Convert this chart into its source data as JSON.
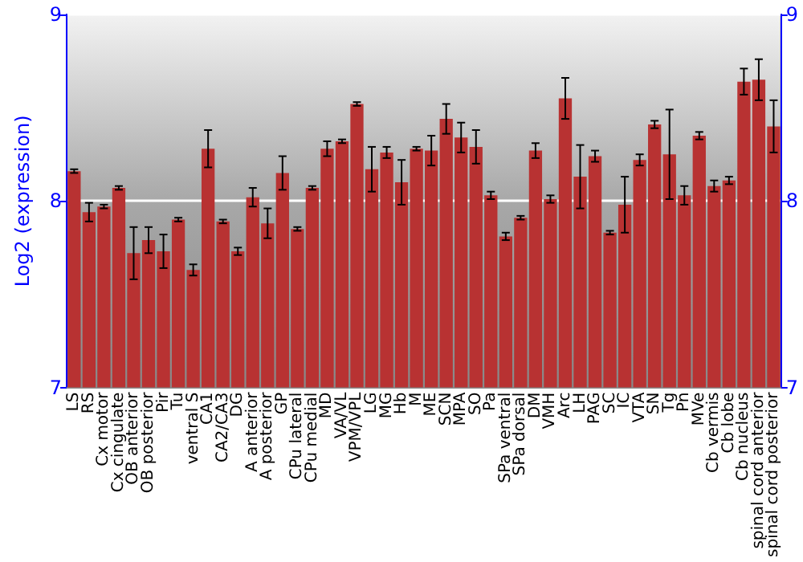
{
  "chart_data": {
    "type": "bar",
    "ylabel": "Log2 (expression)",
    "categories": [
      "LS",
      "RS",
      "Cx motor",
      "Cx cingulate",
      "OB anterior",
      "OB posterior",
      "Pir",
      "Tu",
      "ventral S",
      "CA1",
      "CA2/CA3",
      "DG",
      "A anterior",
      "A posterior",
      "GP",
      "CPu lateral",
      "CPu medial",
      "MD",
      "VA/VL",
      "VPM/VPL",
      "LG",
      "MG",
      "Hb",
      "M",
      "ME",
      "SCN",
      "MPA",
      "SO",
      "Pa",
      "SPa ventral",
      "SPa dorsal",
      "DM",
      "VMH",
      "Arc",
      "LH",
      "PAG",
      "SC",
      "IC",
      "VTA",
      "SN",
      "Tg",
      "Pn",
      "MVe",
      "Cb vermis",
      "Cb lobe",
      "Cb nucleus",
      "spinal cord anterior",
      "spinal cord posterior"
    ],
    "values": [
      8.16,
      7.94,
      7.97,
      8.07,
      7.72,
      7.79,
      7.73,
      7.9,
      7.63,
      8.28,
      7.89,
      7.73,
      8.02,
      7.88,
      8.15,
      7.85,
      8.07,
      8.28,
      8.32,
      8.52,
      8.17,
      8.26,
      8.1,
      8.28,
      8.27,
      8.44,
      8.34,
      8.29,
      8.03,
      7.81,
      7.91,
      8.27,
      8.01,
      8.55,
      8.13,
      8.24,
      7.83,
      7.98,
      8.22,
      8.41,
      8.25,
      8.03,
      8.35,
      8.08,
      8.11,
      8.64,
      8.65,
      8.4
    ],
    "errors": [
      0.01,
      0.05,
      0.01,
      0.01,
      0.14,
      0.07,
      0.09,
      0.01,
      0.03,
      0.1,
      0.01,
      0.02,
      0.05,
      0.08,
      0.09,
      0.01,
      0.01,
      0.04,
      0.01,
      0.01,
      0.12,
      0.03,
      0.12,
      0.01,
      0.08,
      0.08,
      0.08,
      0.09,
      0.02,
      0.02,
      0.01,
      0.04,
      0.02,
      0.11,
      0.17,
      0.03,
      0.01,
      0.15,
      0.03,
      0.02,
      0.24,
      0.05,
      0.02,
      0.03,
      0.02,
      0.07,
      0.11,
      0.14
    ],
    "color": "#b83232",
    "ylim": [
      7,
      9
    ],
    "yticks": [
      7,
      8,
      9
    ],
    "y2lim": [
      7,
      9
    ],
    "y2ticks": [
      7,
      8,
      9
    ],
    "grid": "y"
  }
}
